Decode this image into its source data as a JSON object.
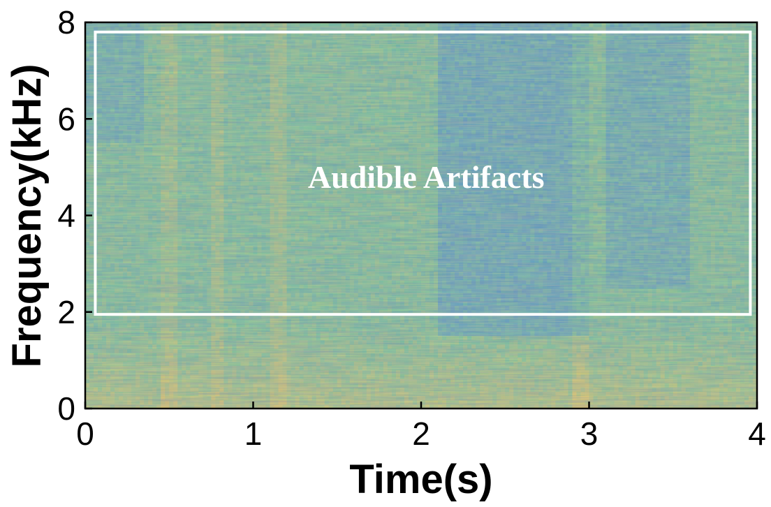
{
  "chart_data": {
    "type": "heatmap",
    "title": "",
    "xlabel": "Time(s)",
    "ylabel": "Frequency(kHz)",
    "xlim": [
      0,
      4
    ],
    "ylim": [
      0,
      8
    ],
    "x_ticks": [
      "0",
      "1",
      "2",
      "3",
      "4"
    ],
    "y_ticks": [
      "0",
      "2",
      "4",
      "6",
      "8"
    ],
    "x_tick_values": [
      0,
      1,
      2,
      3,
      4
    ],
    "y_tick_values": [
      0,
      2,
      4,
      6,
      8
    ],
    "grid": false,
    "colormap": {
      "low": "#3a7fe0",
      "mid": "#6ec39a",
      "high": "#f2c85c"
    },
    "annotations": [
      {
        "text": "Audible Artifacts",
        "region": {
          "x": [
            0.06,
            3.96
          ],
          "y": [
            1.95,
            7.8
          ]
        },
        "text_position": {
          "x": 2.03,
          "y": 4.8
        },
        "box_color": "#ffffff"
      }
    ]
  }
}
